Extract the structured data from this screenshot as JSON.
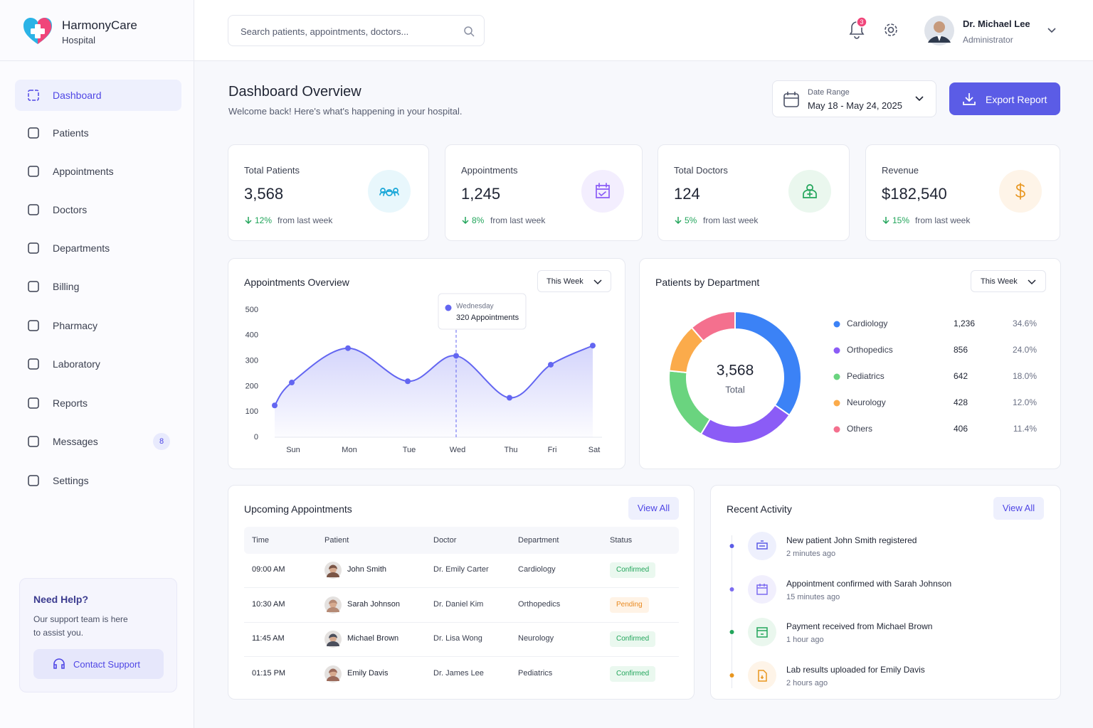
{
  "brand": {
    "name": "HarmonyCare",
    "sub": "Hospital"
  },
  "search_placeholder": "Search patients, appointments, doctors...",
  "notifications": "3",
  "user": {
    "name": "Dr. Michael Lee",
    "role": "Administrator"
  },
  "nav": [
    {
      "label": "Dashboard",
      "active": true
    },
    {
      "label": "Patients"
    },
    {
      "label": "Appointments"
    },
    {
      "label": "Doctors"
    },
    {
      "label": "Departments"
    },
    {
      "label": "Billing"
    },
    {
      "label": "Pharmacy"
    },
    {
      "label": "Laboratory"
    },
    {
      "label": "Reports"
    },
    {
      "label": "Messages",
      "badge": "8"
    },
    {
      "label": "Settings"
    }
  ],
  "help": {
    "title": "Need Help?",
    "text": "Our support team is here to assist you.",
    "button": "Contact Support"
  },
  "header": {
    "title": "Dashboard Overview",
    "subtitle": "Welcome back! Here's what's happening in your hospital."
  },
  "date_range": {
    "label": "Date Range",
    "value": "May 18 - May 24, 2025"
  },
  "export": "Export Report",
  "stats": [
    {
      "label": "Total Patients",
      "value": "3,568",
      "change": "12%",
      "note": "from last week",
      "color": "#1ca8d8",
      "bg": "#e8f7fc"
    },
    {
      "label": "Appointments",
      "value": "1,245",
      "change": "8%",
      "note": "from last week",
      "color": "#8b5cf6",
      "bg": "#f3eefe"
    },
    {
      "label": "Total Doctors",
      "value": "124",
      "change": "5%",
      "note": "from last week",
      "color": "#22a55b",
      "bg": "#eaf7ee"
    },
    {
      "label": "Revenue",
      "value": "$182,540",
      "change": "15%",
      "note": "from last week",
      "color": "#e8961f",
      "bg": "#fef4e8"
    }
  ],
  "chart_data": [
    {
      "type": "line",
      "title": "Appointments Overview",
      "filter": "This Week",
      "categories": [
        null,
        "Sun",
        "Mon",
        "Tue",
        "Wed",
        "Thu",
        "Fri",
        "Sat"
      ],
      "values": [
        125,
        215,
        350,
        220,
        320,
        155,
        285,
        360
      ],
      "color": "#6366f1",
      "ylim": [
        0,
        500
      ],
      "yticks": [
        0,
        100,
        200,
        300,
        400,
        500
      ],
      "grid": false,
      "tooltip": {
        "title": "Wednesday",
        "text": "320 Appointments"
      }
    },
    {
      "type": "pie",
      "title": "Patients by Department",
      "filter": "This Week",
      "center_value": "3,568",
      "center_label": "Total",
      "categories": [
        "Cardiology",
        "Orthopedics",
        "Pediatrics",
        "Neurology",
        "Others"
      ],
      "values": [
        1236,
        856,
        642,
        428,
        406
      ],
      "value_labels": [
        "1,236",
        "856",
        "642",
        "428",
        "406"
      ],
      "shares": [
        34.6,
        24.0,
        18.0,
        12.0,
        11.4
      ],
      "share_labels": [
        "34.6%",
        "24.0%",
        "18.0%",
        "12.0%",
        "11.4%"
      ],
      "colors": [
        "#3b82f6",
        "#8b5cf6",
        "#6ad47f",
        "#fbab4b",
        "#f4708e"
      ]
    }
  ],
  "appointments": {
    "title": "Upcoming Appointments",
    "action": "View All",
    "columns": [
      "Time",
      "Patient",
      "Doctor",
      "Department",
      "Status"
    ],
    "rows": [
      {
        "cells": [
          "09:00 AM",
          "John Smith",
          "Dr. Emily Carter",
          "Cardiology",
          "Confirmed"
        ],
        "status_color": "#22a55b",
        "status_bg": "#eaf8ef"
      },
      {
        "cells": [
          "10:30 AM",
          "Sarah Johnson",
          "Dr. Daniel Kim",
          "Orthopedics",
          "Pending"
        ],
        "status_color": "#e8891f",
        "status_bg": "#fff3e6"
      },
      {
        "cells": [
          "11:45 AM",
          "Michael Brown",
          "Dr. Lisa Wong",
          "Neurology",
          "Confirmed"
        ],
        "status_color": "#22a55b",
        "status_bg": "#eaf8ef"
      },
      {
        "cells": [
          "01:15 PM",
          "Emily Davis",
          "Dr. James Lee",
          "Pediatrics",
          "Confirmed"
        ],
        "status_color": "#22a55b",
        "status_bg": "#eaf8ef"
      }
    ]
  },
  "activity": {
    "title": "Recent Activity",
    "action": "View All",
    "items": [
      {
        "text": "New patient John Smith registered",
        "time": "2 minutes ago",
        "color": "#5b5ce6",
        "bg": "#eef0fd"
      },
      {
        "text": "Appointment confirmed with Sarah Johnson",
        "time": "15 minutes ago",
        "color": "#7c6cf0",
        "bg": "#f1effd"
      },
      {
        "text": "Payment received from Michael Brown",
        "time": "1 hour ago",
        "color": "#22a55b",
        "bg": "#eaf7ee"
      },
      {
        "text": "Lab results uploaded for Emily Davis",
        "time": "2 hours ago",
        "color": "#e8961f",
        "bg": "#fef4e8"
      }
    ]
  }
}
